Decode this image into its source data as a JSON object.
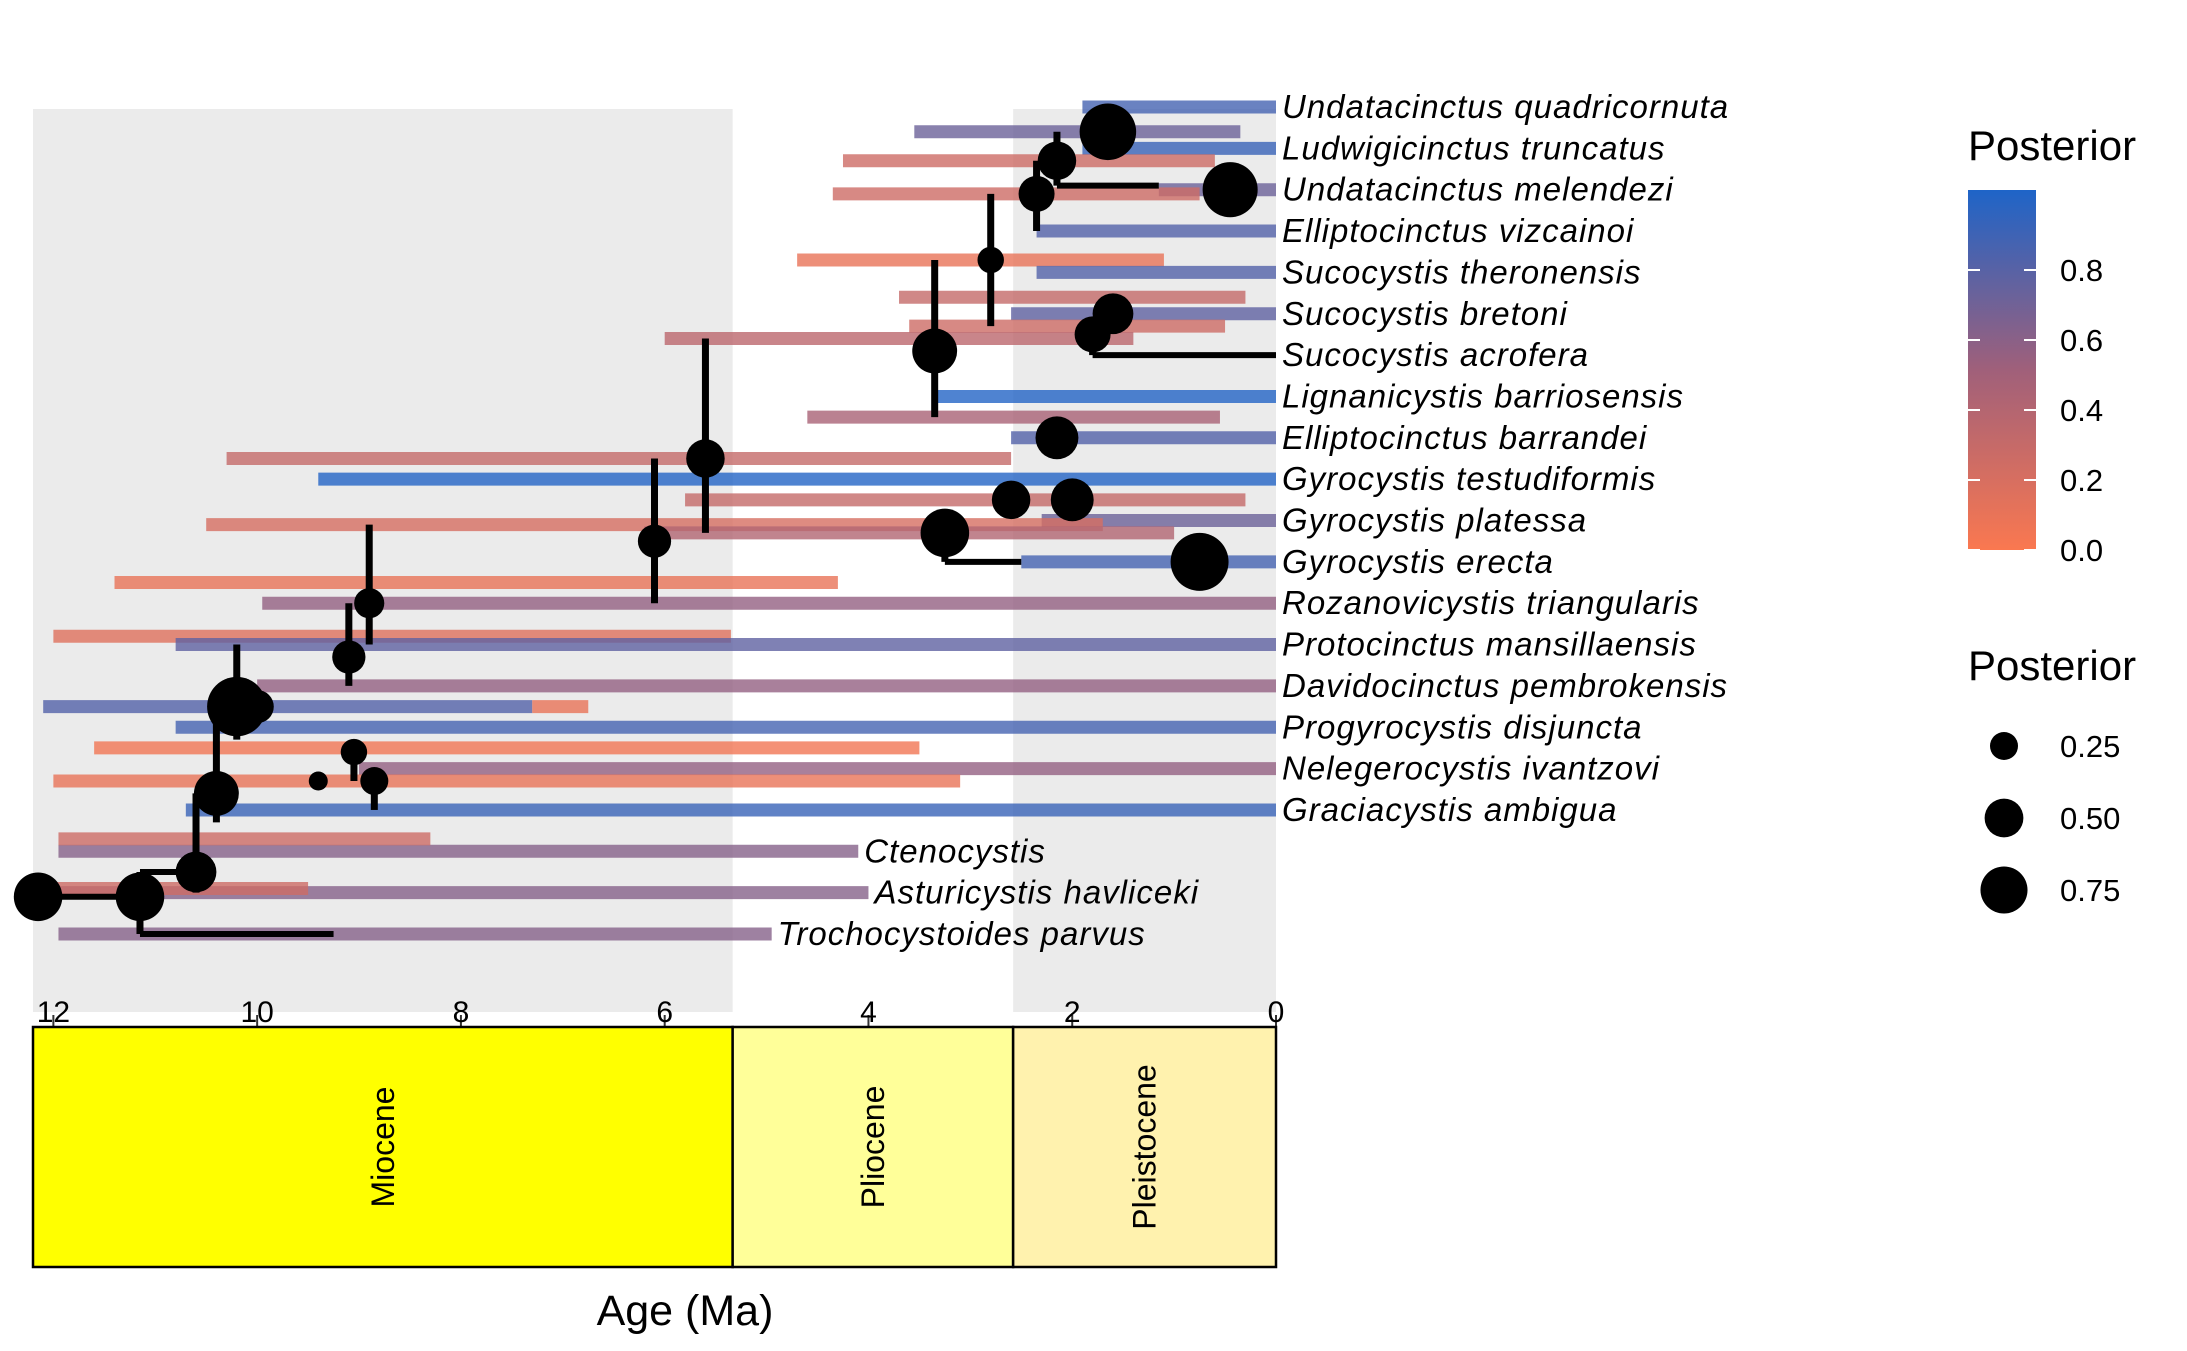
{
  "chart_data": {
    "type": "phylogeny-timetree",
    "x_axis": {
      "label": "Age (Ma)",
      "range": [
        12.2,
        0
      ],
      "ticks": [
        12,
        10,
        8,
        6,
        4,
        2,
        0
      ],
      "tick_labels": [
        "12",
        "10",
        "8",
        "6",
        "4",
        "2",
        "0"
      ]
    },
    "epochs": [
      {
        "name": "Miocene",
        "start": 12.2,
        "end": 5.333,
        "color": "#FFFF00"
      },
      {
        "name": "Pliocene",
        "start": 5.333,
        "end": 2.58,
        "color": "#FFFF99"
      },
      {
        "name": "Pleistocene",
        "start": 2.58,
        "end": 0,
        "color": "#FFF2AE"
      }
    ],
    "background_bands": [
      {
        "start": 12.2,
        "end": 5.333,
        "shaded": true
      },
      {
        "start": 5.333,
        "end": 2.58,
        "shaded": false
      },
      {
        "start": 2.58,
        "end": 0,
        "shaded": true
      }
    ],
    "tips": [
      {
        "name": "Undatacinctus quadricornuta",
        "age": 0,
        "row": 1
      },
      {
        "name": "Ludwigicinctus truncatus",
        "age": 0,
        "row": 2
      },
      {
        "name": "Undatacinctus melendezi",
        "age": 0,
        "row": 3
      },
      {
        "name": "Elliptocinctus vizcainoi",
        "age": 0,
        "row": 4
      },
      {
        "name": "Sucocystis theronensis",
        "age": 0,
        "row": 5
      },
      {
        "name": "Sucocystis bretoni",
        "age": 0,
        "row": 6
      },
      {
        "name": "Sucocystis acrofera",
        "age": 0,
        "row": 7
      },
      {
        "name": "Lignanicystis barriosensis",
        "age": 0,
        "row": 8
      },
      {
        "name": "Elliptocinctus barrandei",
        "age": 0,
        "row": 9
      },
      {
        "name": "Gyrocystis testudiformis",
        "age": 0,
        "row": 10
      },
      {
        "name": "Gyrocystis platessa",
        "age": 0,
        "row": 11
      },
      {
        "name": "Gyrocystis erecta",
        "age": 0,
        "row": 12
      },
      {
        "name": "Rozanovicystis triangularis",
        "age": 0,
        "row": 13
      },
      {
        "name": "Protocinctus mansillaensis",
        "age": 0,
        "row": 14
      },
      {
        "name": "Davidocinctus pembrokensis",
        "age": 0,
        "row": 15
      },
      {
        "name": "Progyrocystis disjuncta",
        "age": 0,
        "row": 16
      },
      {
        "name": "Nelegerocystis ivantzovi",
        "age": 0,
        "row": 17
      },
      {
        "name": "Graciacystis ambigua",
        "age": 0,
        "row": 18
      },
      {
        "name": "Ctenocystis",
        "age": 4.1,
        "row": 19
      },
      {
        "name": "Asturicystis havliceki",
        "age": 4.0,
        "row": 20
      },
      {
        "name": "Trochocystoides parvus",
        "age": 4.95,
        "row": 21
      }
    ],
    "nodes": [
      {
        "id": "n1",
        "age": 12.15,
        "row": 20.1,
        "posterior": 0.55
      },
      {
        "id": "n2",
        "age": 11.15,
        "row": 20.1,
        "posterior": 0.55
      },
      {
        "id": "n3",
        "age": 10.6,
        "row": 19.5,
        "posterior": 0.35
      },
      {
        "id": "n4",
        "age": 10.4,
        "row": 17.6,
        "posterior": 0.45
      },
      {
        "id": "n5",
        "age": 10.2,
        "row": 15.5,
        "posterior": 0.9
      },
      {
        "id": "n6",
        "age": 9.1,
        "row": 14.3,
        "posterior": 0.2
      },
      {
        "id": "n7",
        "age": 8.9,
        "row": 13.0,
        "posterior": 0.15
      },
      {
        "id": "n8",
        "age": 6.1,
        "row": 11.5,
        "posterior": 0.2
      },
      {
        "id": "n9",
        "age": 5.6,
        "row": 9.5,
        "posterior": 0.3
      },
      {
        "id": "n10",
        "age": 3.35,
        "row": 6.9,
        "posterior": 0.45
      },
      {
        "id": "n11",
        "age": 2.8,
        "row": 4.7,
        "posterior": 0.1
      },
      {
        "id": "n12",
        "age": 2.35,
        "row": 3.1,
        "posterior": 0.25
      },
      {
        "id": "n13",
        "age": 2.15,
        "row": 2.3,
        "posterior": 0.3
      },
      {
        "id": "n14",
        "age": 1.65,
        "row": 1.6,
        "posterior": 0.8
      },
      {
        "id": "n15",
        "age": 0.45,
        "row": 3.0,
        "posterior": 0.75
      },
      {
        "id": "n16",
        "age": 1.8,
        "row": 6.5,
        "posterior": 0.25
      },
      {
        "id": "n17",
        "age": 1.6,
        "row": 6.0,
        "posterior": 0.35
      },
      {
        "id": "n18",
        "age": 2.15,
        "row": 9.0,
        "posterior": 0.4
      },
      {
        "id": "n19",
        "age": 2.6,
        "row": 10.5,
        "posterior": 0.3
      },
      {
        "id": "n20",
        "age": 2.0,
        "row": 10.5,
        "posterior": 0.4
      },
      {
        "id": "n21",
        "age": 3.25,
        "row": 11.3,
        "posterior": 0.55
      },
      {
        "id": "n22",
        "age": 0.75,
        "row": 12.0,
        "posterior": 0.85
      },
      {
        "id": "n23",
        "age": 10.0,
        "row": 15.5,
        "posterior": 0.2
      },
      {
        "id": "n24",
        "age": 9.05,
        "row": 16.6,
        "posterior": 0.1
      },
      {
        "id": "n25",
        "age": 8.85,
        "row": 17.3,
        "posterior": 0.12
      },
      {
        "id": "n26",
        "age": 9.4,
        "row": 17.3,
        "posterior": 0.03
      }
    ],
    "range_bars": [
      {
        "row": 1.0,
        "start": 1.9,
        "end": 0,
        "posterior": 0.85
      },
      {
        "row": 1.6,
        "start": 3.55,
        "end": 0.35,
        "posterior": 0.7
      },
      {
        "row": 2.0,
        "start": 1.9,
        "end": 0,
        "posterior": 0.9
      },
      {
        "row": 2.3,
        "start": 4.25,
        "end": 0.6,
        "posterior": 0.25
      },
      {
        "row": 3.0,
        "start": 1.15,
        "end": 0,
        "posterior": 0.7
      },
      {
        "row": 3.1,
        "start": 4.35,
        "end": 0.75,
        "posterior": 0.25
      },
      {
        "row": 4.0,
        "start": 2.35,
        "end": 0,
        "posterior": 0.8
      },
      {
        "row": 4.7,
        "start": 4.7,
        "end": 1.1,
        "posterior": 0.1
      },
      {
        "row": 5.0,
        "start": 2.35,
        "end": 0,
        "posterior": 0.8
      },
      {
        "row": 5.6,
        "start": 3.7,
        "end": 0.3,
        "posterior": 0.3
      },
      {
        "row": 6.0,
        "start": 2.6,
        "end": 0,
        "posterior": 0.75
      },
      {
        "row": 6.3,
        "start": 3.6,
        "end": 0.5,
        "posterior": 0.25
      },
      {
        "row": 6.6,
        "start": 6.0,
        "end": 1.4,
        "posterior": 0.35
      },
      {
        "row": 8.0,
        "start": 3.35,
        "end": 0,
        "posterior": 0.98
      },
      {
        "row": 8.5,
        "start": 4.6,
        "end": 0.55,
        "posterior": 0.45
      },
      {
        "row": 9.0,
        "start": 2.6,
        "end": 0,
        "posterior": 0.8
      },
      {
        "row": 9.5,
        "start": 10.3,
        "end": 2.6,
        "posterior": 0.3
      },
      {
        "row": 10.0,
        "start": 9.4,
        "end": 0,
        "posterior": 0.98
      },
      {
        "row": 10.5,
        "start": 5.8,
        "end": 0.3,
        "posterior": 0.3
      },
      {
        "row": 11.0,
        "start": 2.3,
        "end": 0,
        "posterior": 0.7
      },
      {
        "row": 11.1,
        "start": 10.5,
        "end": 1.7,
        "posterior": 0.2
      },
      {
        "row": 11.3,
        "start": 6.2,
        "end": 1.0,
        "posterior": 0.4
      },
      {
        "row": 12.0,
        "start": 2.5,
        "end": 0,
        "posterior": 0.85
      },
      {
        "row": 12.5,
        "start": 11.4,
        "end": 4.3,
        "posterior": 0.1
      },
      {
        "row": 13.0,
        "start": 9.95,
        "end": 0,
        "posterior": 0.55
      },
      {
        "row": 13.8,
        "start": 12.0,
        "end": 5.35,
        "posterior": 0.15
      },
      {
        "row": 14.0,
        "start": 10.8,
        "end": 0,
        "posterior": 0.75
      },
      {
        "row": 15.0,
        "start": 10.0,
        "end": 0,
        "posterior": 0.55
      },
      {
        "row": 15.5,
        "start": 12.1,
        "end": 7.3,
        "posterior": 0.8
      },
      {
        "row": 15.5,
        "start": 7.3,
        "end": 6.75,
        "posterior": 0.1
      },
      {
        "row": 16.0,
        "start": 10.8,
        "end": 0,
        "posterior": 0.85
      },
      {
        "row": 16.5,
        "start": 11.6,
        "end": 3.5,
        "posterior": 0.05
      },
      {
        "row": 17.0,
        "start": 9.0,
        "end": 0,
        "posterior": 0.55
      },
      {
        "row": 17.3,
        "start": 12.0,
        "end": 3.1,
        "posterior": 0.1
      },
      {
        "row": 18.0,
        "start": 10.7,
        "end": 0,
        "posterior": 0.9
      },
      {
        "row": 19.0,
        "start": 11.95,
        "end": 4.1,
        "posterior": 0.6
      },
      {
        "row": 18.7,
        "start": 11.95,
        "end": 8.3,
        "posterior": 0.25
      },
      {
        "row": 20.0,
        "start": 11.95,
        "end": 4.0,
        "posterior": 0.6
      },
      {
        "row": 19.9,
        "start": 12.1,
        "end": 9.5,
        "posterior": 0.25
      },
      {
        "row": 21.0,
        "start": 11.95,
        "end": 4.95,
        "posterior": 0.6
      }
    ],
    "edges": [
      {
        "type": "v",
        "age": 11.15,
        "row_from": 19.5,
        "row_to": 21.0
      },
      {
        "type": "h",
        "row": 21.0,
        "age_from": 11.15,
        "age_to": 9.25
      },
      {
        "type": "h",
        "row": 20.1,
        "age_from": 12.15,
        "age_to": 11.15
      },
      {
        "type": "v",
        "age": 10.6,
        "row_from": 17.6,
        "row_to": 20.0
      },
      {
        "type": "h",
        "row": 19.5,
        "age_from": 11.15,
        "age_to": 10.6
      },
      {
        "type": "v",
        "age": 10.4,
        "row_from": 15.5,
        "row_to": 18.3
      },
      {
        "type": "v",
        "age": 10.2,
        "row_from": 14.0,
        "row_to": 16.3
      },
      {
        "type": "v",
        "age": 9.1,
        "row_from": 13.0,
        "row_to": 15.0
      },
      {
        "type": "v",
        "age": 8.9,
        "row_from": 11.1,
        "row_to": 14.0
      },
      {
        "type": "v",
        "age": 6.1,
        "row_from": 9.5,
        "row_to": 13.0
      },
      {
        "type": "v",
        "age": 5.6,
        "row_from": 6.6,
        "row_to": 11.3
      },
      {
        "type": "v",
        "age": 3.35,
        "row_from": 4.7,
        "row_to": 8.5
      },
      {
        "type": "v",
        "age": 2.8,
        "row_from": 3.1,
        "row_to": 6.3
      },
      {
        "type": "v",
        "age": 2.35,
        "row_from": 2.3,
        "row_to": 4.0
      },
      {
        "type": "v",
        "age": 2.15,
        "row_from": 1.6,
        "row_to": 2.9
      },
      {
        "type": "h",
        "row": 2.9,
        "age_from": 2.15,
        "age_to": 1.15
      },
      {
        "type": "v",
        "age": 1.8,
        "row_from": 6.3,
        "row_to": 7.0
      },
      {
        "type": "h",
        "row": 7.0,
        "age_from": 1.8,
        "age_to": 0
      },
      {
        "type": "v",
        "age": 3.25,
        "row_from": 11.3,
        "row_to": 12.0
      },
      {
        "type": "h",
        "row": 12.0,
        "age_from": 3.25,
        "age_to": 2.5
      },
      {
        "type": "v",
        "age": 9.05,
        "row_from": 16.6,
        "row_to": 17.3
      },
      {
        "type": "v",
        "age": 8.85,
        "row_from": 17.3,
        "row_to": 18.0
      }
    ],
    "color_legend": {
      "title": "Posterior",
      "stops": [
        {
          "value": 0.0,
          "color": "#FA7850"
        },
        {
          "value": 1.0,
          "color": "#1E64C8"
        }
      ],
      "ticks": [
        "0.0",
        "0.2",
        "0.4",
        "0.6",
        "0.8"
      ]
    },
    "size_legend": {
      "title": "Posterior",
      "entries": [
        {
          "label": "0.25",
          "value": 0.25
        },
        {
          "label": "0.50",
          "value": 0.5
        },
        {
          "label": "0.75",
          "value": 0.75
        }
      ]
    }
  }
}
